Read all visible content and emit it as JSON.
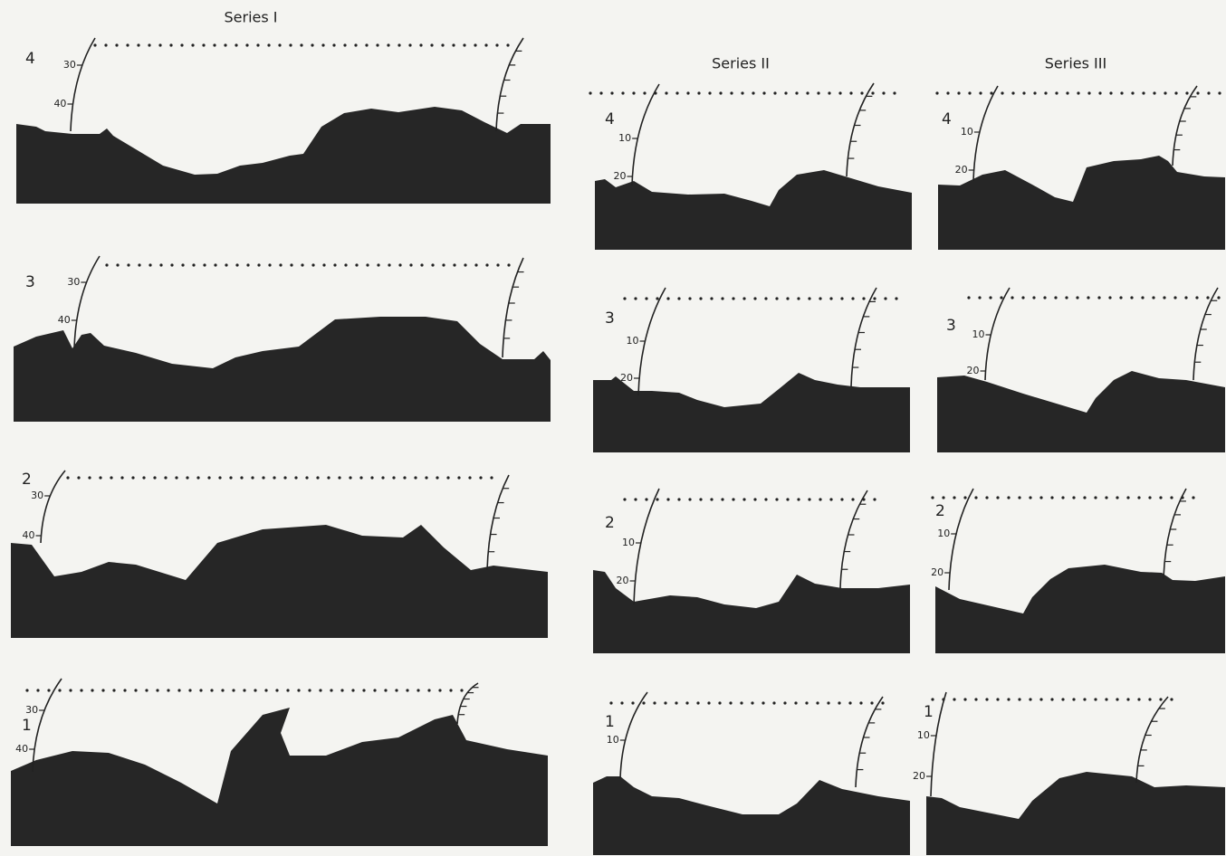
{
  "series": [
    {
      "title": "Series I",
      "panels": [
        {
          "label": "4",
          "ticks": [
            "30",
            "40"
          ]
        },
        {
          "label": "3",
          "ticks": [
            "30",
            "40"
          ]
        },
        {
          "label": "2",
          "ticks": [
            "30",
            "40"
          ]
        },
        {
          "label": "1",
          "ticks": [
            "30",
            "40"
          ]
        }
      ]
    },
    {
      "title": "Series II",
      "panels": [
        {
          "label": "4",
          "ticks": [
            "10",
            "20"
          ]
        },
        {
          "label": "3",
          "ticks": [
            "10",
            "20"
          ]
        },
        {
          "label": "2",
          "ticks": [
            "10",
            "20"
          ]
        },
        {
          "label": "1",
          "ticks": [
            "10"
          ]
        }
      ]
    },
    {
      "title": "Series III",
      "panels": [
        {
          "label": "4",
          "ticks": [
            "10",
            "20"
          ]
        },
        {
          "label": "3",
          "ticks": [
            "10",
            "20"
          ]
        },
        {
          "label": "2",
          "ticks": [
            "10",
            "20"
          ]
        },
        {
          "label": "1",
          "ticks": [
            "10",
            "20"
          ]
        }
      ]
    }
  ]
}
